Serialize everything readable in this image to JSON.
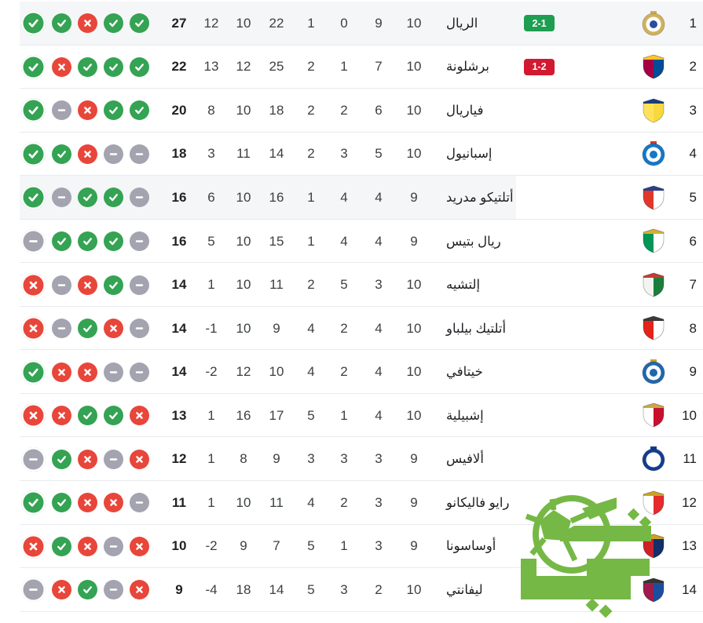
{
  "colors": {
    "win": "#34A353",
    "loss": "#E8463A",
    "draw": "#A3A4AF",
    "badge_win": "#1E9E50",
    "badge_loss": "#D21930",
    "separator": "#E8EAED",
    "row_highlight": "#F5F6F7",
    "watermark_green": "#76B845",
    "text_primary": "#202124"
  },
  "table": {
    "direction": "rtl",
    "stat_order_ltr": [
      "points",
      "gd",
      "ga",
      "gf",
      "lost",
      "drawn",
      "won",
      "played"
    ],
    "rows": [
      {
        "rank": "1",
        "name": "الريال",
        "played": "10",
        "won": "9",
        "drawn": "0",
        "lost": "1",
        "gf": "22",
        "ga": "10",
        "gd": "12",
        "points": "27",
        "form": [
          "win",
          "win",
          "loss",
          "win",
          "win"
        ],
        "live_score": {
          "text": "2-1",
          "type": "win"
        },
        "highlight": "full",
        "crest": {
          "shape": "circle",
          "colors": [
            "#CFB25C",
            "#2A4DA0",
            "#CFB25C"
          ]
        }
      },
      {
        "rank": "2",
        "name": "برشلونة",
        "played": "10",
        "won": "7",
        "drawn": "1",
        "lost": "2",
        "gf": "25",
        "ga": "12",
        "gd": "13",
        "points": "22",
        "form": [
          "win",
          "loss",
          "win",
          "win",
          "win"
        ],
        "live_score": {
          "text": "1-2",
          "type": "loss"
        },
        "highlight": null,
        "crest": {
          "shape": "shield",
          "colors": [
            "#A50044",
            "#004D98",
            "#FDC52C"
          ]
        }
      },
      {
        "rank": "3",
        "name": "فياريال",
        "played": "10",
        "won": "6",
        "drawn": "2",
        "lost": "2",
        "gf": "18",
        "ga": "10",
        "gd": "8",
        "points": "20",
        "form": [
          "win",
          "draw",
          "loss",
          "win",
          "win"
        ],
        "live_score": null,
        "highlight": null,
        "crest": {
          "shape": "shield",
          "colors": [
            "#FFE25A",
            "#F7D93F",
            "#1B3C7A"
          ]
        }
      },
      {
        "rank": "4",
        "name": "إسبانيول",
        "played": "10",
        "won": "5",
        "drawn": "3",
        "lost": "2",
        "gf": "14",
        "ga": "11",
        "gd": "3",
        "points": "18",
        "form": [
          "win",
          "win",
          "loss",
          "draw",
          "draw"
        ],
        "live_score": null,
        "highlight": null,
        "crest": {
          "shape": "circle",
          "colors": [
            "#1477C8",
            "#1477C8",
            "#D23B33"
          ]
        }
      },
      {
        "rank": "5",
        "name": "أتلتيكو مدريد",
        "played": "9",
        "won": "4",
        "drawn": "4",
        "lost": "1",
        "gf": "16",
        "ga": "10",
        "gd": "6",
        "points": "16",
        "form": [
          "win",
          "draw",
          "win",
          "win",
          "draw"
        ],
        "live_score": null,
        "highlight": "partial",
        "crest": {
          "shape": "shield",
          "colors": [
            "#E0362C",
            "#FFFFFF",
            "#27408B"
          ]
        }
      },
      {
        "rank": "6",
        "name": "ريال بتيس",
        "played": "9",
        "won": "4",
        "drawn": "4",
        "lost": "1",
        "gf": "15",
        "ga": "10",
        "gd": "5",
        "points": "16",
        "form": [
          "draw",
          "win",
          "win",
          "win",
          "draw"
        ],
        "live_score": null,
        "highlight": null,
        "crest": {
          "shape": "shield",
          "colors": [
            "#009655",
            "#FFFFFF",
            "#D4AF37"
          ]
        }
      },
      {
        "rank": "7",
        "name": "إلتشيه",
        "played": "10",
        "won": "3",
        "drawn": "5",
        "lost": "2",
        "gf": "11",
        "ga": "10",
        "gd": "1",
        "points": "14",
        "form": [
          "loss",
          "draw",
          "loss",
          "win",
          "draw"
        ],
        "live_score": null,
        "highlight": null,
        "crest": {
          "shape": "shield",
          "colors": [
            "#F3F3EF",
            "#1C7E3C",
            "#C43C35"
          ]
        }
      },
      {
        "rank": "8",
        "name": "أتلتيك بيلباو",
        "played": "10",
        "won": "4",
        "drawn": "2",
        "lost": "4",
        "gf": "9",
        "ga": "10",
        "gd": "-1",
        "points": "14",
        "form": [
          "loss",
          "draw",
          "win",
          "loss",
          "draw"
        ],
        "live_score": null,
        "highlight": null,
        "crest": {
          "shape": "shield",
          "colors": [
            "#E32219",
            "#FFFFFF",
            "#3A3A3A"
          ]
        }
      },
      {
        "rank": "9",
        "name": "خيتافي",
        "played": "10",
        "won": "4",
        "drawn": "2",
        "lost": "4",
        "gf": "10",
        "ga": "12",
        "gd": "-2",
        "points": "14",
        "form": [
          "win",
          "loss",
          "loss",
          "draw",
          "draw"
        ],
        "live_score": null,
        "highlight": null,
        "crest": {
          "shape": "circle",
          "colors": [
            "#2067AD",
            "#2067AD",
            "#C9A227"
          ]
        }
      },
      {
        "rank": "10",
        "name": "إشبيلية",
        "played": "10",
        "won": "4",
        "drawn": "1",
        "lost": "5",
        "gf": "17",
        "ga": "16",
        "gd": "1",
        "points": "13",
        "form": [
          "loss",
          "loss",
          "win",
          "win",
          "loss"
        ],
        "live_score": null,
        "highlight": null,
        "crest": {
          "shape": "shield",
          "colors": [
            "#FFFFFF",
            "#C8102E",
            "#CAA84B"
          ]
        }
      },
      {
        "rank": "11",
        "name": "ألافيس",
        "played": "9",
        "won": "3",
        "drawn": "3",
        "lost": "3",
        "gf": "9",
        "ga": "8",
        "gd": "1",
        "points": "12",
        "form": [
          "draw",
          "win",
          "loss",
          "draw",
          "loss"
        ],
        "live_score": null,
        "highlight": null,
        "crest": {
          "shape": "circle",
          "colors": [
            "#143D8F",
            "#FFFFFF",
            "#143D8F"
          ]
        }
      },
      {
        "rank": "12",
        "name": "رايو فاليكانو",
        "played": "9",
        "won": "3",
        "drawn": "2",
        "lost": "4",
        "gf": "11",
        "ga": "10",
        "gd": "1",
        "points": "11",
        "form": [
          "win",
          "win",
          "loss",
          "loss",
          "draw"
        ],
        "live_score": null,
        "highlight": null,
        "crest": {
          "shape": "shield",
          "colors": [
            "#FFFFFF",
            "#E52B2B",
            "#C9A227"
          ]
        }
      },
      {
        "rank": "13",
        "name": "أوساسونا",
        "played": "9",
        "won": "3",
        "drawn": "1",
        "lost": "5",
        "gf": "7",
        "ga": "9",
        "gd": "-2",
        "points": "10",
        "form": [
          "loss",
          "win",
          "loss",
          "draw",
          "loss"
        ],
        "live_score": null,
        "highlight": null,
        "crest": {
          "shape": "shield",
          "colors": [
            "#CC2128",
            "#11306B",
            "#C9A227"
          ]
        }
      },
      {
        "rank": "14",
        "name": "ليفانتي",
        "played": "10",
        "won": "2",
        "drawn": "3",
        "lost": "5",
        "gf": "14",
        "ga": "18",
        "gd": "-4",
        "points": "9",
        "form": [
          "draw",
          "loss",
          "win",
          "draw",
          "loss"
        ],
        "live_score": null,
        "highlight": null,
        "crest": {
          "shape": "shield",
          "colors": [
            "#9E1B4B",
            "#1B4F9E",
            "#333333"
          ]
        }
      }
    ]
  }
}
